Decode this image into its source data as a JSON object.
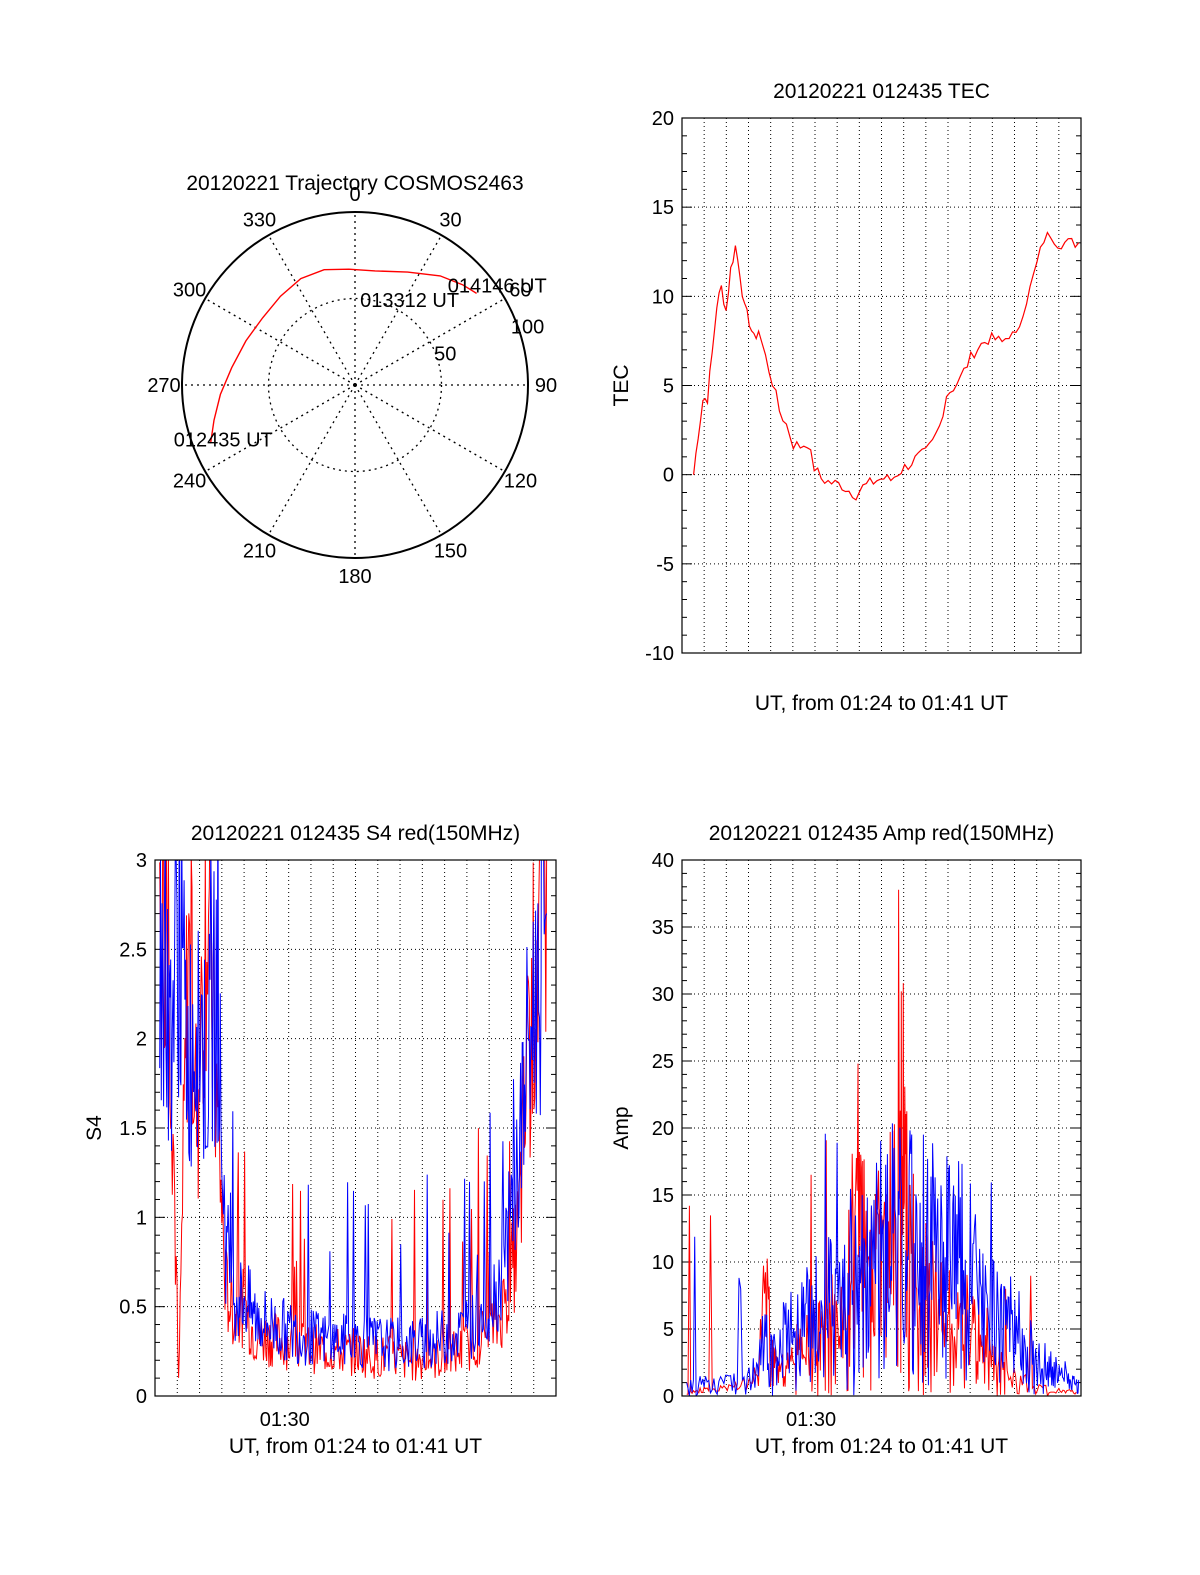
{
  "colors": {
    "red": "#ff0000",
    "blue": "#0000ff",
    "axis": "#000000",
    "grid": "#000000"
  },
  "chart_data": [
    {
      "id": "trajectory",
      "type": "polar",
      "title": "20120221 Trajectory COSMOS2463",
      "angle_labels": [
        {
          "deg": 0,
          "label": "0"
        },
        {
          "deg": 30,
          "label": "30"
        },
        {
          "deg": 60,
          "label": "60"
        },
        {
          "deg": 90,
          "label": "90"
        },
        {
          "deg": 120,
          "label": "120"
        },
        {
          "deg": 150,
          "label": "150"
        },
        {
          "deg": 180,
          "label": "180"
        },
        {
          "deg": 210,
          "label": "210"
        },
        {
          "deg": 240,
          "label": "240"
        },
        {
          "deg": 270,
          "label": "270"
        },
        {
          "deg": 300,
          "label": "300"
        },
        {
          "deg": 330,
          "label": "330"
        }
      ],
      "radius_labels": [
        {
          "value": 50,
          "label": "50"
        },
        {
          "value": 100,
          "label": "100"
        }
      ],
      "r_max": 100,
      "track": [
        {
          "az": 248,
          "r": 90
        },
        {
          "az": 256,
          "r": 84
        },
        {
          "az": 266,
          "r": 78
        },
        {
          "az": 278,
          "r": 72
        },
        {
          "az": 292,
          "r": 68
        },
        {
          "az": 306,
          "r": 66
        },
        {
          "az": 320,
          "r": 67
        },
        {
          "az": 333,
          "r": 69
        },
        {
          "az": 345,
          "r": 69
        },
        {
          "az": 357,
          "r": 67
        },
        {
          "az": 10,
          "r": 67
        },
        {
          "az": 25,
          "r": 72
        },
        {
          "az": 38,
          "r": 80
        },
        {
          "az": 47,
          "r": 85
        },
        {
          "az": 53,
          "r": 88
        }
      ],
      "annotations": [
        {
          "label": "012435 UT",
          "az": 245,
          "r": 84
        },
        {
          "label": "013312 UT",
          "az": 35,
          "r": 55
        },
        {
          "label": "014146 UT",
          "az": 57,
          "r": 98
        }
      ]
    },
    {
      "id": "tec",
      "type": "line",
      "title": "20120221 012435 TEC",
      "xlabel": "UT, from 01:24 to 01:41 UT",
      "ylabel": "TEC",
      "xlim": [
        0,
        17.2
      ],
      "ylim": [
        -10,
        20
      ],
      "yticks": [
        {
          "v": -10,
          "l": "-10"
        },
        {
          "v": -5,
          "l": "-5"
        },
        {
          "v": 0,
          "l": "0"
        },
        {
          "v": 5,
          "l": "5"
        },
        {
          "v": 10,
          "l": "10"
        },
        {
          "v": 15,
          "l": "15"
        },
        {
          "v": 20,
          "l": "20"
        }
      ],
      "xticks": [],
      "series": [
        {
          "color": "red",
          "x": [
            0.5,
            0.7,
            0.9,
            1.1,
            1.3,
            1.5,
            1.7,
            1.9,
            2.1,
            2.3,
            2.5,
            2.7,
            2.9,
            3.1,
            3.3,
            3.6,
            3.9,
            4.2,
            4.5,
            4.8,
            5.1,
            5.4,
            5.7,
            6.0,
            6.3,
            6.6,
            6.9,
            7.2,
            7.5,
            7.8,
            8.1,
            8.4,
            8.7,
            9.0,
            9.3,
            9.6,
            9.9,
            10.2,
            10.5,
            10.8,
            11.1,
            11.4,
            11.7,
            12.0,
            12.3,
            12.6,
            12.9,
            13.2,
            13.5,
            13.8,
            14.1,
            14.4,
            14.7,
            15.0,
            15.3,
            15.6,
            15.9,
            16.2,
            16.5,
            16.8,
            17.1
          ],
          "y": [
            0,
            2.3,
            4.2,
            4.3,
            6.8,
            9.5,
            10.5,
            9.2,
            11.5,
            12.8,
            11.3,
            9.3,
            8.6,
            7.6,
            8.1,
            6.6,
            5.2,
            3.6,
            2.8,
            1.7,
            1.6,
            1.8,
            0.4,
            -0.2,
            -0.4,
            -0.5,
            -0.6,
            -0.9,
            -1.1,
            -0.7,
            -0.5,
            -0.3,
            -0.2,
            -0.3,
            0.1,
            0.4,
            0.7,
            1.0,
            1.2,
            1.8,
            2.7,
            4.5,
            4.9,
            5.4,
            6.2,
            6.9,
            7.3,
            7.6,
            7.6,
            7.4,
            7.9,
            7.7,
            9.2,
            10.4,
            11.8,
            13.2,
            13.5,
            13.0,
            13.0,
            13.0,
            13.0
          ]
        }
      ]
    },
    {
      "id": "s4",
      "type": "line",
      "title": "20120221 012435 S4 red(150MHz)",
      "xlabel": "UT, from 01:24 to 01:41 UT",
      "ylabel": "S4",
      "xlim": [
        0,
        17
      ],
      "ylim": [
        0,
        3
      ],
      "yticks": [
        {
          "v": 0,
          "l": "0"
        },
        {
          "v": 0.5,
          "l": "0.5"
        },
        {
          "v": 1,
          "l": "1"
        },
        {
          "v": 1.5,
          "l": "1.5"
        },
        {
          "v": 2,
          "l": "2"
        },
        {
          "v": 2.5,
          "l": "2.5"
        },
        {
          "v": 3,
          "l": "3"
        }
      ],
      "xticks": [
        {
          "v": 5.5,
          "l": "01:30"
        }
      ],
      "series": [
        {
          "color": "red",
          "x": [
            0.2,
            0.6,
            1.0,
            1.4,
            1.8,
            2.2,
            2.6,
            3.0,
            3.4,
            3.8,
            4.2,
            4.6,
            5.0,
            5.5,
            6.0,
            6.5,
            7.0,
            7.5,
            8.0,
            8.5,
            9.0,
            9.5,
            10.0,
            10.5,
            11.0,
            11.5,
            12.0,
            12.5,
            13.0,
            13.5,
            14.0,
            14.5,
            15.0,
            15.4,
            15.8,
            16.2,
            16.6
          ],
          "y": [
            3.0,
            2.6,
            0.05,
            2.5,
            1.5,
            2.9,
            1.7,
            0.6,
            0.45,
            0.5,
            0.35,
            0.33,
            0.32,
            0.3,
            0.28,
            0.27,
            0.26,
            0.26,
            0.24,
            0.25,
            0.23,
            0.22,
            0.22,
            0.2,
            0.2,
            0.21,
            0.21,
            0.23,
            0.26,
            0.3,
            0.35,
            0.4,
            0.6,
            0.9,
            1.8,
            2.5,
            3.0
          ]
        },
        {
          "color": "blue",
          "x": [
            0.2,
            0.6,
            1.0,
            1.4,
            1.8,
            2.2,
            2.6,
            3.0,
            3.4,
            3.8,
            4.2,
            4.6,
            5.0,
            5.5,
            6.0,
            6.5,
            7.0,
            7.5,
            8.0,
            8.5,
            9.0,
            9.5,
            10.0,
            10.5,
            11.0,
            11.5,
            12.0,
            12.5,
            13.0,
            13.5,
            14.0,
            14.5,
            15.0,
            15.4,
            15.8,
            16.2,
            16.6
          ],
          "y": [
            2.4,
            2.0,
            2.6,
            1.9,
            2.2,
            1.8,
            2.3,
            0.85,
            0.55,
            0.55,
            0.45,
            0.42,
            0.4,
            0.37,
            0.35,
            0.33,
            0.32,
            0.31,
            0.31,
            0.31,
            0.3,
            0.3,
            0.29,
            0.29,
            0.29,
            0.3,
            0.32,
            0.34,
            0.36,
            0.4,
            0.46,
            0.6,
            0.9,
            1.3,
            1.9,
            2.3,
            2.7
          ]
        }
      ]
    },
    {
      "id": "amp",
      "type": "line",
      "title": "20120221 012435 Amp red(150MHz)",
      "xlabel": "UT, from 01:24 to 01:41 UT",
      "ylabel": "Amp",
      "xlim": [
        0,
        17
      ],
      "ylim": [
        0,
        40
      ],
      "yticks": [
        {
          "v": 0,
          "l": "0"
        },
        {
          "v": 5,
          "l": "5"
        },
        {
          "v": 10,
          "l": "10"
        },
        {
          "v": 15,
          "l": "15"
        },
        {
          "v": 20,
          "l": "20"
        },
        {
          "v": 25,
          "l": "25"
        },
        {
          "v": 30,
          "l": "30"
        },
        {
          "v": 35,
          "l": "35"
        },
        {
          "v": 40,
          "l": "40"
        }
      ],
      "xticks": [
        {
          "v": 5.5,
          "l": "01:30"
        }
      ],
      "series": [
        {
          "color": "red",
          "x": [
            0.2,
            1.0,
            2.0,
            3.0,
            3.6,
            4.0,
            4.5,
            5.0,
            5.5,
            6.0,
            6.5,
            7.0,
            7.5,
            7.9,
            8.3,
            8.8,
            9.3,
            9.6,
            10.0,
            10.5,
            11.0,
            11.5,
            12.0,
            12.5,
            13.0,
            13.5,
            14.0,
            15.0,
            16.0,
            16.8
          ],
          "y": [
            0.3,
            0.6,
            0.8,
            1.5,
            10.3,
            3.2,
            4.0,
            5.0,
            6.0,
            7.0,
            8.5,
            9.5,
            25.5,
            10.0,
            17.0,
            14.0,
            35.8,
            18.0,
            12.0,
            11.0,
            10.0,
            9.0,
            8.0,
            6.5,
            5.0,
            3.5,
            2.0,
            1.0,
            0.6,
            0.3
          ]
        },
        {
          "color": "blue",
          "x": [
            0.2,
            1.0,
            2.0,
            3.0,
            3.5,
            4.0,
            4.5,
            5.0,
            5.5,
            6.0,
            6.5,
            7.0,
            7.5,
            8.0,
            8.5,
            9.0,
            9.5,
            10.0,
            10.5,
            11.0,
            11.5,
            12.0,
            12.5,
            13.0,
            13.5,
            14.0,
            14.5,
            15.0,
            15.5,
            16.0,
            16.5,
            16.9
          ],
          "y": [
            1.0,
            1.5,
            1.8,
            2.5,
            6.0,
            5.0,
            6.5,
            7.5,
            8.5,
            9.5,
            11.0,
            12.5,
            15.0,
            16.5,
            16.0,
            19.5,
            17.5,
            15.5,
            17.0,
            18.2,
            15.5,
            15.0,
            12.5,
            11.0,
            10.0,
            8.0,
            6.0,
            4.5,
            3.2,
            2.5,
            2.0,
            1.2
          ]
        }
      ]
    }
  ]
}
